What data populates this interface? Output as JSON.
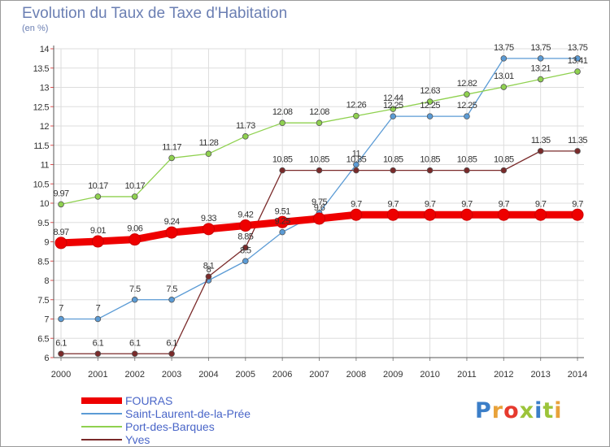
{
  "header": {
    "title": "Evolution du Taux de Taxe d'Habitation",
    "subtitle": "(en %)"
  },
  "logo": {
    "text": "Proxiti",
    "colors": [
      "#3b7ec8",
      "#e8a23a",
      "#e63a2e",
      "#9cc43a",
      "#3b7ec8",
      "#9cc43a",
      "#e8a23a"
    ]
  },
  "chart_data": {
    "type": "line",
    "x": [
      2000,
      2001,
      2002,
      2003,
      2004,
      2005,
      2006,
      2007,
      2008,
      2009,
      2010,
      2011,
      2012,
      2013,
      2014
    ],
    "ylim": [
      6,
      14
    ],
    "yticks": [
      "6",
      "6.5",
      "7",
      "7.5",
      "8",
      "8.5",
      "9",
      "9.5",
      "10",
      "10.5",
      "11",
      "11.5",
      "12",
      "12.5",
      "13",
      "13.5",
      "14"
    ],
    "grid": true,
    "legend_position": "bottom-left",
    "series": [
      {
        "name": "FOURAS",
        "color": "#ee0000",
        "values": [
          8.97,
          9.01,
          9.06,
          9.24,
          9.33,
          9.42,
          9.51,
          9.6,
          9.7,
          9.7,
          9.7,
          9.7,
          9.7,
          9.7,
          9.7
        ],
        "labels": [
          "8.97",
          "9.01",
          "9.06",
          "9.24",
          "9.33",
          "9.42",
          "9.51",
          "9.6",
          "9.7",
          "9.7",
          "9.7",
          "9.7",
          "9.7",
          "9.7",
          "9.7"
        ]
      },
      {
        "name": "Saint-Laurent-de-la-Prée",
        "color": "#5b9bd5",
        "values": [
          7,
          7,
          7.5,
          7.5,
          8,
          8.5,
          9.25,
          9.75,
          11,
          12.25,
          12.25,
          12.25,
          13.75,
          13.75,
          13.75
        ],
        "labels": [
          "7",
          "7",
          "7.5",
          "7.5",
          "8",
          "8.5",
          "9.25",
          "9.75",
          "11",
          "12.25",
          "12.25",
          "12.25",
          "13.75",
          "13.75",
          "13.75"
        ]
      },
      {
        "name": "Port-des-Barques",
        "color": "#8fd14f",
        "values": [
          9.97,
          10.17,
          10.17,
          11.17,
          11.28,
          11.73,
          12.08,
          12.08,
          12.26,
          12.44,
          12.63,
          12.82,
          13.01,
          13.21,
          13.41
        ],
        "labels": [
          "9.97",
          "10.17",
          "10.17",
          "11.17",
          "11.28",
          "11.73",
          "12.08",
          "12.08",
          "12.26",
          "12.44",
          "12.63",
          "12.82",
          "13.01",
          "13.21",
          "13.41"
        ]
      },
      {
        "name": "Yves",
        "color": "#7a2a2a",
        "values": [
          6.1,
          6.1,
          6.1,
          6.1,
          8.1,
          8.85,
          10.85,
          10.85,
          10.85,
          10.85,
          10.85,
          10.85,
          10.85,
          11.35,
          11.35
        ],
        "labels": [
          "6.1",
          "6.1",
          "6.1",
          "6.1",
          "8.1",
          "8.85",
          "10.85",
          "10.85",
          "10.85",
          "10.85",
          "10.85",
          "10.85",
          "10.85",
          "11.35",
          "11.35"
        ]
      }
    ]
  }
}
